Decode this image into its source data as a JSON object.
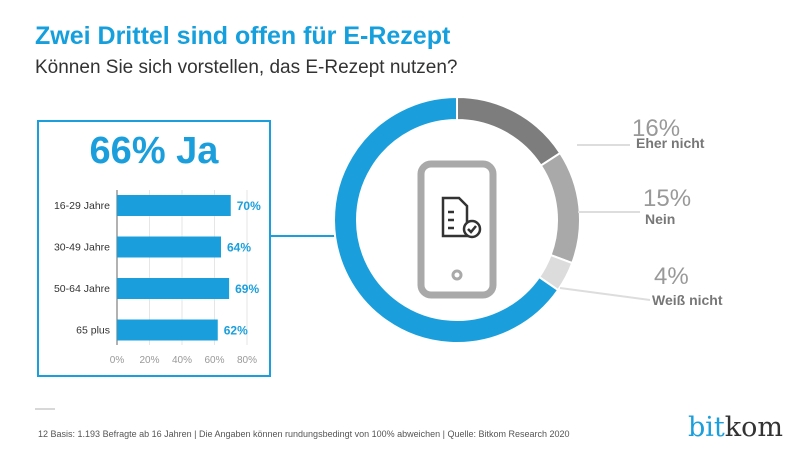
{
  "header": {
    "title": "Zwei Drittel sind offen für E-Rezept",
    "subtitle": "Können Sie sich vorstellen, das E-Rezept nutzen?"
  },
  "colors": {
    "accent": "#1a9fdc",
    "dark_gray": "#7d7d7d",
    "mid_gray": "#a9a9a9",
    "light_gray": "#dcdcdc"
  },
  "chart_data": [
    {
      "type": "pie",
      "variant": "donut",
      "slices": [
        {
          "label": "Eher nicht",
          "value": 16,
          "value_label": "16%",
          "color": "#7d7d7d"
        },
        {
          "label": "Nein",
          "value": 15,
          "value_label": "15%",
          "color": "#a9a9a9"
        },
        {
          "label": "Weiß nicht",
          "value": 4,
          "value_label": "4%",
          "color": "#dcdcdc"
        },
        {
          "label": "Ja",
          "value": 66,
          "value_label": "66% Ja",
          "color": "#1a9fdc"
        }
      ],
      "center_icon": "smartphone-prescription-icon"
    },
    {
      "type": "bar",
      "orientation": "horizontal",
      "headline": "66% Ja",
      "categories": [
        "16-29 Jahre",
        "30-49 Jahre",
        "50-64 Jahre",
        "65 plus"
      ],
      "values": [
        70,
        64,
        69,
        62
      ],
      "value_labels": [
        "70%",
        "64%",
        "69%",
        "62%"
      ],
      "xlim": [
        0,
        80
      ],
      "xticks": [
        "0%",
        "20%",
        "40%",
        "60%",
        "80%"
      ],
      "grid": true
    }
  ],
  "footer": {
    "page": "12",
    "text": "Basis: 1.193 Befragte ab 16 Jahren | Die Angaben können rundungsbedingt von 100% abweichen | Quelle: Bitkom Research 2020"
  },
  "logo": {
    "part1": "bit",
    "part2": "kom"
  }
}
